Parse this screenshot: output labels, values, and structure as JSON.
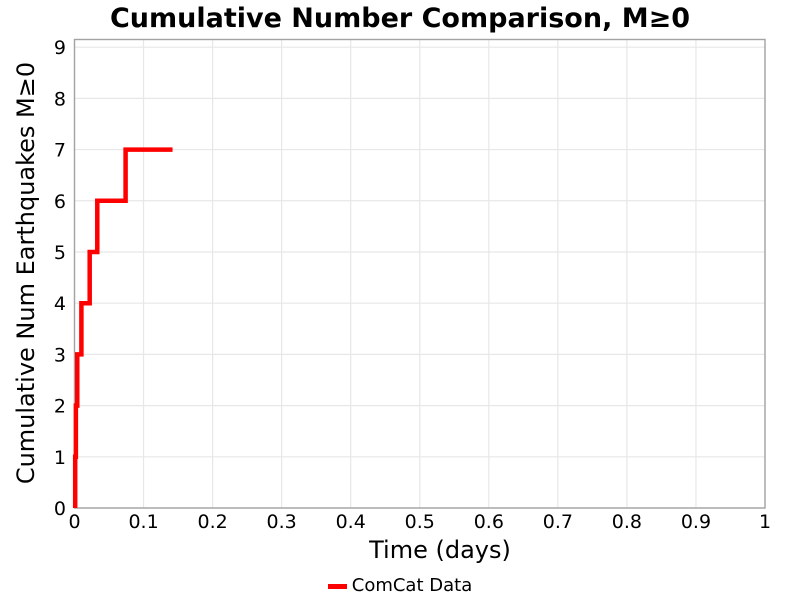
{
  "title": "Cumulative Number Comparison, M≥0",
  "chart_data": {
    "type": "line",
    "subtype": "cumulative-step-post",
    "title": "Cumulative Number Comparison, M≥0",
    "xlabel": "Time (days)",
    "ylabel": "Cumulative Num Earthquakes M≥0",
    "xlim": [
      0,
      1
    ],
    "ylim": [
      0,
      9.15
    ],
    "grid": true,
    "x_ticks": [
      0,
      0.1,
      0.2,
      0.3,
      0.4,
      0.5,
      0.6,
      0.7,
      0.8,
      0.9,
      1
    ],
    "x_tick_labels": [
      "0",
      "0.1",
      "0.2",
      "0.3",
      "0.4",
      "0.5",
      "0.6",
      "0.7",
      "0.8",
      "0.9",
      "1"
    ],
    "y_ticks": [
      0,
      1,
      2,
      3,
      4,
      5,
      6,
      7,
      8,
      9
    ],
    "y_tick_labels": [
      "0",
      "1",
      "2",
      "3",
      "4",
      "5",
      "6",
      "7",
      "8",
      "9"
    ],
    "legend": {
      "position": "bottom-center",
      "entries": [
        {
          "label": "ComCat Data",
          "color": "#ff0000"
        }
      ]
    },
    "series": [
      {
        "name": "ComCat Data",
        "color": "#ff0000",
        "line_width": 4.5,
        "event_times_days": [
          0.001,
          0.002,
          0.004,
          0.01,
          0.022,
          0.033,
          0.074
        ],
        "cumulative_counts": [
          1,
          2,
          3,
          4,
          5,
          6,
          7
        ],
        "end_time_days": 0.142
      }
    ],
    "colors": {
      "series_red": "#ff0000",
      "gridline": "#e7e7e7",
      "spine": "#a3a3a3",
      "text": "#000000",
      "background": "#ffffff"
    }
  }
}
